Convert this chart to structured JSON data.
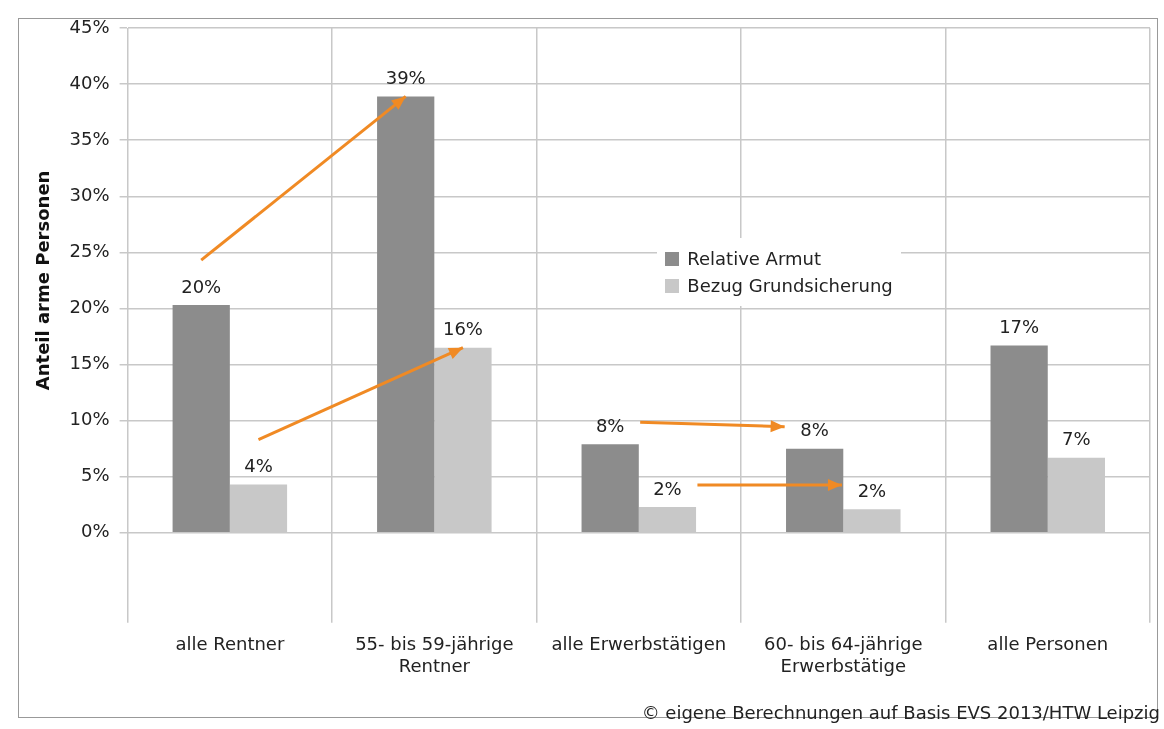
{
  "chart_data": {
    "type": "bar",
    "ylabel": "Anteil arme Personen",
    "categories": [
      "alle Rentner",
      "55- bis 59-jährige Rentner",
      "alle Erwerbstätigen",
      "60- bis 64-jährige Erwerbstätige",
      "alle Personen"
    ],
    "series": [
      {
        "name": "Relative Armut",
        "color": "#8c8c8c",
        "values": [
          20.3,
          38.9,
          7.9,
          7.5,
          16.7
        ],
        "value_labels": [
          "20%",
          "39%",
          "8%",
          "8%",
          "17%"
        ]
      },
      {
        "name": "Bezug Grundsicherung",
        "color": "#c8c8c8",
        "values": [
          4.3,
          16.5,
          2.3,
          2.1,
          6.7
        ],
        "value_labels": [
          "4%",
          "16%",
          "2%",
          "2%",
          "7%"
        ]
      }
    ],
    "ylim": [
      0,
      45
    ],
    "yticks": [
      {
        "value": 0,
        "label": "0%"
      },
      {
        "value": 5,
        "label": "5%"
      },
      {
        "value": 10,
        "label": "10%"
      },
      {
        "value": 15,
        "label": "15%"
      },
      {
        "value": 20,
        "label": "20%"
      },
      {
        "value": 25,
        "label": "25%"
      },
      {
        "value": 30,
        "label": "30%"
      },
      {
        "value": 35,
        "label": "35%"
      },
      {
        "value": 40,
        "label": "40%"
      },
      {
        "value": 45,
        "label": "45%"
      }
    ],
    "grid": true,
    "legend": "top",
    "annotations": [
      "© eigene Berechnungen auf Basis EVS 2013/HTW Leipzig"
    ]
  }
}
